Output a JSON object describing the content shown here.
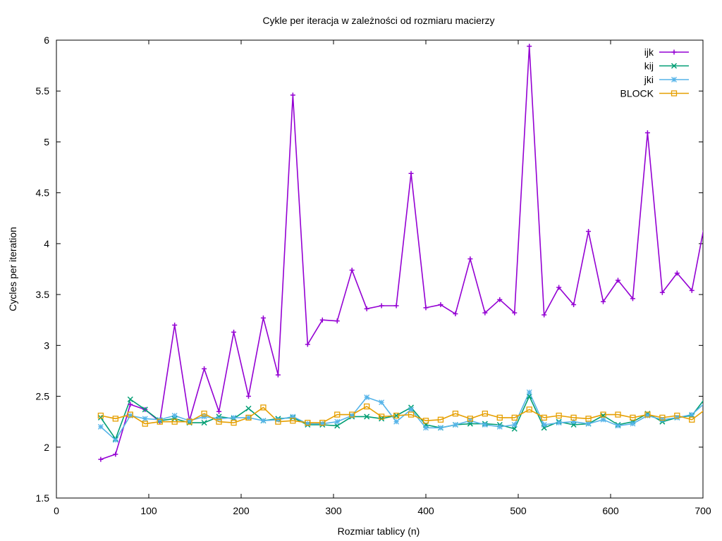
{
  "chart_data": {
    "type": "line",
    "title": "Cykle per iteracja w zależności od rozmiaru macierzy",
    "xlabel": "Rozmiar tablicy (n)",
    "ylabel": "Cycles per iteration",
    "xlim": [
      0,
      700
    ],
    "ylim": [
      1.5,
      6
    ],
    "xticks": [
      0,
      100,
      200,
      300,
      400,
      500,
      600,
      700
    ],
    "yticks": [
      1.5,
      2,
      2.5,
      3,
      3.5,
      4,
      4.5,
      5,
      5.5,
      6
    ],
    "ytick_labels": [
      "1.5",
      "2",
      "2.5",
      "3",
      "3.5",
      "4",
      "4.5",
      "5",
      "5.5",
      "6"
    ],
    "grid": false,
    "legend_position": "top-right",
    "x": [
      48,
      64,
      80,
      96,
      112,
      128,
      144,
      160,
      176,
      192,
      208,
      224,
      240,
      256,
      272,
      288,
      304,
      320,
      336,
      352,
      368,
      384,
      400,
      416,
      432,
      448,
      464,
      480,
      496,
      512,
      528,
      544,
      560,
      576,
      592,
      608,
      624,
      640,
      656,
      672,
      688,
      704
    ],
    "series": [
      {
        "name": "ijk",
        "color": "#9400d3",
        "marker": "plus",
        "values": [
          1.88,
          1.93,
          2.42,
          2.37,
          2.25,
          3.2,
          2.26,
          2.77,
          2.35,
          3.13,
          2.5,
          3.27,
          2.71,
          5.46,
          3.01,
          3.25,
          3.24,
          3.74,
          3.36,
          3.39,
          3.39,
          4.69,
          3.37,
          3.4,
          3.31,
          3.85,
          3.32,
          3.45,
          3.32,
          5.94,
          3.3,
          3.57,
          3.4,
          4.12,
          3.43,
          3.64,
          3.46,
          5.09,
          3.52,
          3.71,
          3.54,
          4.3
        ]
      },
      {
        "name": "kij",
        "color": "#009e73",
        "marker": "cross",
        "values": [
          2.29,
          2.08,
          2.47,
          2.37,
          2.26,
          2.28,
          2.24,
          2.24,
          2.3,
          2.28,
          2.38,
          2.26,
          2.28,
          2.29,
          2.22,
          2.22,
          2.21,
          2.3,
          2.3,
          2.28,
          2.31,
          2.39,
          2.22,
          2.19,
          2.22,
          2.23,
          2.23,
          2.22,
          2.18,
          2.5,
          2.19,
          2.25,
          2.22,
          2.23,
          2.31,
          2.22,
          2.25,
          2.33,
          2.25,
          2.29,
          2.31,
          2.5
        ]
      },
      {
        "name": "jki",
        "color": "#56b4e9",
        "marker": "star",
        "values": [
          2.2,
          2.07,
          2.31,
          2.28,
          2.27,
          2.31,
          2.26,
          2.3,
          2.28,
          2.29,
          2.29,
          2.26,
          2.27,
          2.3,
          2.23,
          2.23,
          2.25,
          2.31,
          2.49,
          2.44,
          2.25,
          2.37,
          2.19,
          2.19,
          2.22,
          2.26,
          2.22,
          2.2,
          2.22,
          2.54,
          2.22,
          2.24,
          2.25,
          2.23,
          2.27,
          2.21,
          2.23,
          2.31,
          2.27,
          2.29,
          2.32,
          2.45
        ]
      },
      {
        "name": "BLOCK",
        "color": "#e69f00",
        "marker": "square",
        "values": [
          2.31,
          2.28,
          2.32,
          2.23,
          2.25,
          2.25,
          2.25,
          2.33,
          2.25,
          2.24,
          2.29,
          2.39,
          2.25,
          2.26,
          2.24,
          2.24,
          2.32,
          2.32,
          2.4,
          2.3,
          2.31,
          2.32,
          2.26,
          2.27,
          2.33,
          2.28,
          2.33,
          2.29,
          2.29,
          2.37,
          2.29,
          2.31,
          2.29,
          2.28,
          2.32,
          2.32,
          2.29,
          2.32,
          2.29,
          2.31,
          2.27,
          2.38
        ]
      }
    ]
  }
}
